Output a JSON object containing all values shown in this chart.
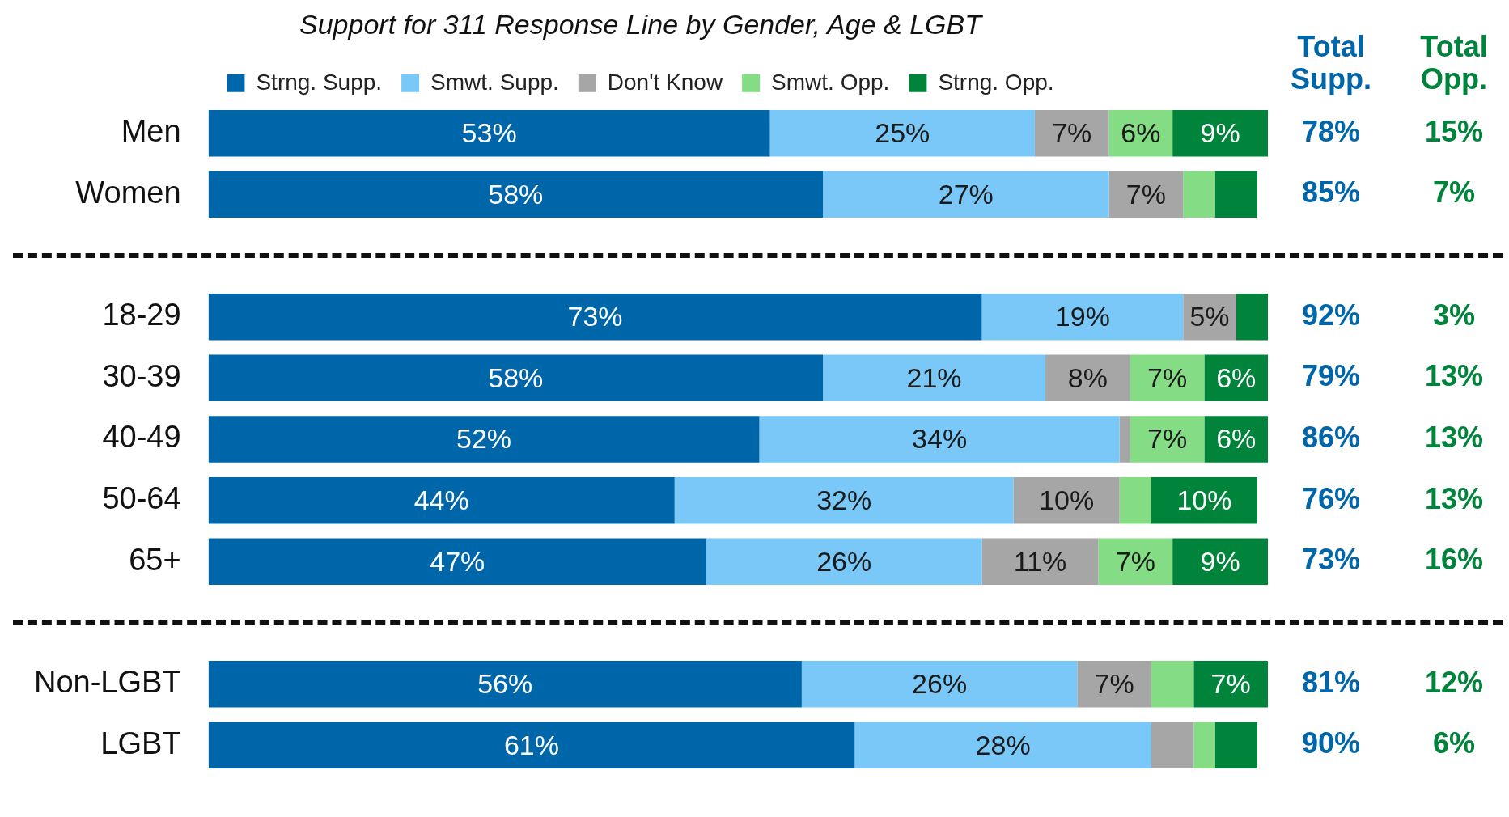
{
  "chart_data": {
    "type": "bar",
    "orientation": "horizontal",
    "stacked": true,
    "title": "Support for 311 Response Line by Gender, Age & LGBT",
    "legend": "top",
    "categories": [
      "Men",
      "Women",
      null,
      "18-29",
      "30-39",
      "40-49",
      "50-64",
      "65+",
      null,
      "Non-LGBT",
      "LGBT"
    ],
    "series": [
      {
        "name": "Strng. Supp.",
        "color": "#0066aa",
        "values": [
          53,
          58,
          null,
          73,
          58,
          52,
          44,
          47,
          null,
          56,
          61
        ],
        "value_labels": [
          "53%",
          "58%",
          null,
          "73%",
          "58%",
          "52%",
          "44%",
          "47%",
          null,
          "56%",
          "61%"
        ]
      },
      {
        "name": "Smwt. Supp.",
        "color": "#79c8f8",
        "values": [
          25,
          27,
          null,
          19,
          21,
          34,
          32,
          26,
          null,
          26,
          28
        ],
        "value_labels": [
          "25%",
          "27%",
          null,
          "19%",
          "21%",
          "34%",
          "32%",
          "26%",
          null,
          "26%",
          "28%"
        ]
      },
      {
        "name": "Don't Know",
        "color": "#a6a6a6",
        "values": [
          7,
          7,
          null,
          5,
          8,
          1,
          10,
          11,
          null,
          7,
          4
        ],
        "value_labels": [
          "7%",
          "7%",
          null,
          "5%",
          "8%",
          null,
          "10%",
          "11%",
          null,
          "7%",
          null
        ]
      },
      {
        "name": "Smwt. Opp.",
        "color": "#84dc84",
        "values": [
          6,
          3,
          null,
          0,
          7,
          7,
          3,
          7,
          null,
          4,
          2
        ],
        "value_labels": [
          "6%",
          null,
          null,
          null,
          "7%",
          "7%",
          null,
          "7%",
          null,
          null,
          null
        ]
      },
      {
        "name": "Strng. Opp.",
        "color": "#00843c",
        "values": [
          9,
          4,
          null,
          3,
          6,
          6,
          10,
          9,
          null,
          7,
          4
        ],
        "value_labels": [
          "9%",
          null,
          null,
          null,
          "6%",
          "6%",
          "10%",
          "9%",
          null,
          "7%",
          null
        ]
      }
    ],
    "annotations": [
      "Total Supp.",
      "Total Opp.",
      "78%",
      "15%",
      "85%",
      "7%",
      "92%",
      "3%",
      "79%",
      "13%",
      "86%",
      "13%",
      "76%",
      "13%",
      "73%",
      "16%",
      "81%",
      "12%",
      "90%",
      "6%"
    ]
  }
}
